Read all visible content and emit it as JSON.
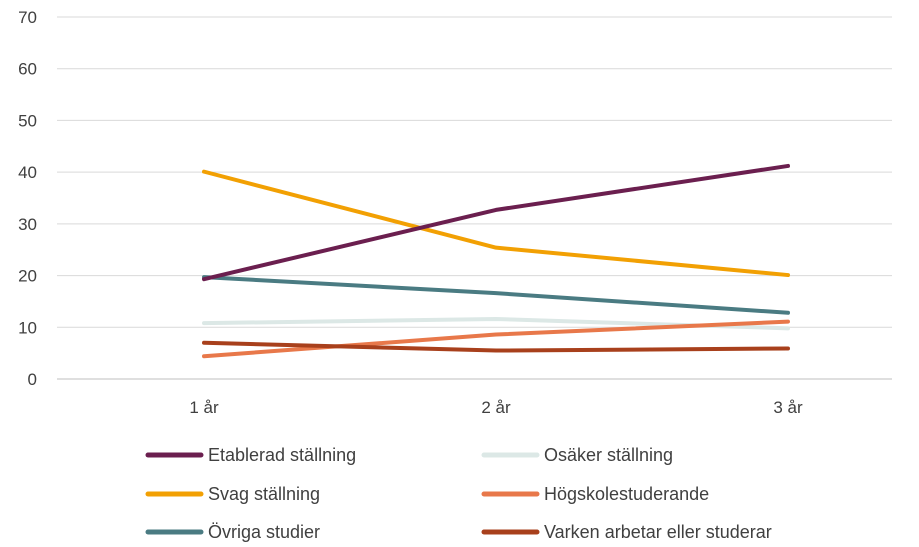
{
  "chart_data": {
    "type": "line",
    "title": "",
    "xlabel": "",
    "ylabel": "",
    "categories": [
      "1 år",
      "2 år",
      "3 år"
    ],
    "ylim": [
      0,
      70
    ],
    "yticks": [
      0,
      10,
      20,
      30,
      40,
      50,
      60,
      70
    ],
    "grid": true,
    "legend_position": "bottom",
    "series": [
      {
        "name": "Etablerad ställning",
        "color": "#6b1f4f",
        "values": [
          19.3,
          32.7,
          41.2
        ]
      },
      {
        "name": "Osäker ställning",
        "color": "#dce8e6",
        "values": [
          10.8,
          11.6,
          9.8
        ]
      },
      {
        "name": "Svag ställning",
        "color": "#f2a003",
        "values": [
          40.1,
          25.4,
          20.1
        ]
      },
      {
        "name": "Högskolestuderande",
        "color": "#e8784a",
        "values": [
          4.4,
          8.6,
          11.1
        ]
      },
      {
        "name": "Övriga studier",
        "color": "#4a7b82",
        "values": [
          19.7,
          16.6,
          12.8
        ]
      },
      {
        "name": "Varken arbetar eller studerar",
        "color": "#a8401c",
        "values": [
          7.0,
          5.5,
          5.9
        ]
      }
    ]
  }
}
